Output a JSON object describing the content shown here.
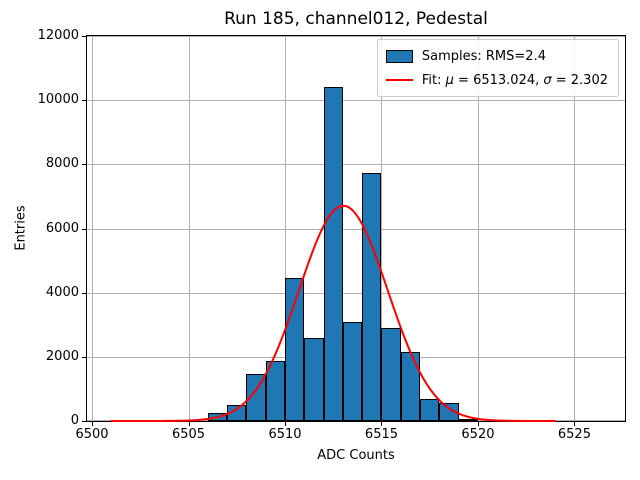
{
  "chart_data": {
    "type": "histogram",
    "title": "Run 185, channel012, Pedestal",
    "xlabel": "ADC Counts",
    "ylabel": "Entries",
    "xlim": [
      6499.74,
      6527.62
    ],
    "ylim": [
      0,
      12000
    ],
    "x_ticks": [
      6500,
      6505,
      6510,
      6515,
      6520,
      6525
    ],
    "y_ticks": [
      0,
      2000,
      4000,
      6000,
      8000,
      10000,
      12000
    ],
    "grid": true,
    "legend_position": "upper right",
    "bins": {
      "start": 6506,
      "bin_width": 1,
      "counts": [
        250,
        490,
        1450,
        1860,
        4450,
        2590,
        10410,
        3100,
        7740,
        2900,
        2140,
        700,
        560,
        70
      ]
    },
    "fit_curve": {
      "shape": "gaussian",
      "mu": 6513.024,
      "sigma": 2.302,
      "peak": 6710,
      "x_min": 6501,
      "x_max": 6524
    },
    "legend": {
      "items": [
        {
          "swatch": "patch",
          "segments": [
            {
              "text": "Samples: RMS=2.4",
              "italic": false
            }
          ]
        },
        {
          "swatch": "line",
          "segments": [
            {
              "text": "Fit: ",
              "italic": false
            },
            {
              "text": "μ",
              "italic": true
            },
            {
              "text": " = 6513.024, ",
              "italic": false
            },
            {
              "text": "σ",
              "italic": true
            },
            {
              "text": " = 2.302",
              "italic": false
            }
          ]
        }
      ]
    },
    "colors": {
      "bar_fill": "#1f77b4",
      "bar_edge": "#000000",
      "fit_line": "#ff0000",
      "grid_line": "#b0b0b0",
      "background": "#ffffff",
      "text": "#000000"
    }
  }
}
